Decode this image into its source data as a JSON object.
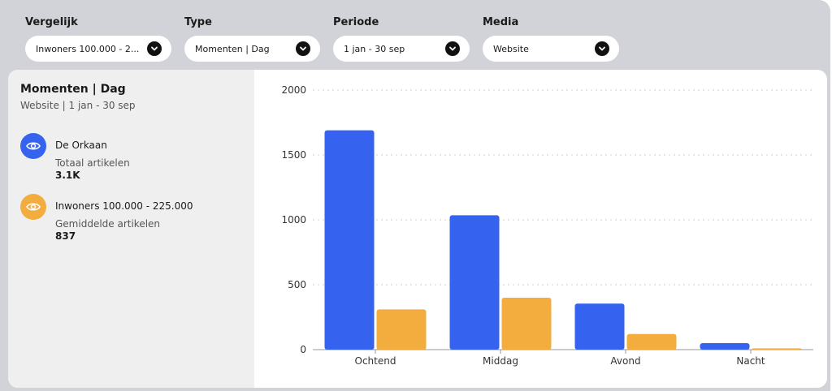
{
  "filters": [
    {
      "label": "Vergelijk",
      "value": "Inwoners 100.000 - 2..."
    },
    {
      "label": "Type",
      "value": "Momenten | Dag"
    },
    {
      "label": "Periode",
      "value": "1 jan - 30 sep"
    },
    {
      "label": "Media",
      "value": "Website"
    }
  ],
  "panel": {
    "title": "Momenten | Dag",
    "subtitle": "Website | 1 jan - 30 sep",
    "legend": [
      {
        "name": "De Orkaan",
        "metric": "Totaal artikelen",
        "value": "3.1K",
        "color": "#3563f0",
        "icon": "eye-icon"
      },
      {
        "name": "Inwoners 100.000 - 225.000",
        "metric": "Gemiddelde artikelen",
        "value": "837",
        "color": "#f2ad3e",
        "icon": "eye-icon"
      }
    ]
  },
  "chart_data": {
    "type": "bar",
    "categories": [
      "Ochtend",
      "Middag",
      "Avond",
      "Nacht"
    ],
    "series": [
      {
        "values": [
          1690,
          1035,
          355,
          50
        ],
        "color": "#3563f0"
      },
      {
        "values": [
          310,
          400,
          120,
          10
        ],
        "color": "#f2ad3e"
      }
    ],
    "yticks": [
      0,
      500,
      1000,
      1500,
      2000
    ],
    "ylim": [
      0,
      2000
    ],
    "grid": true
  }
}
